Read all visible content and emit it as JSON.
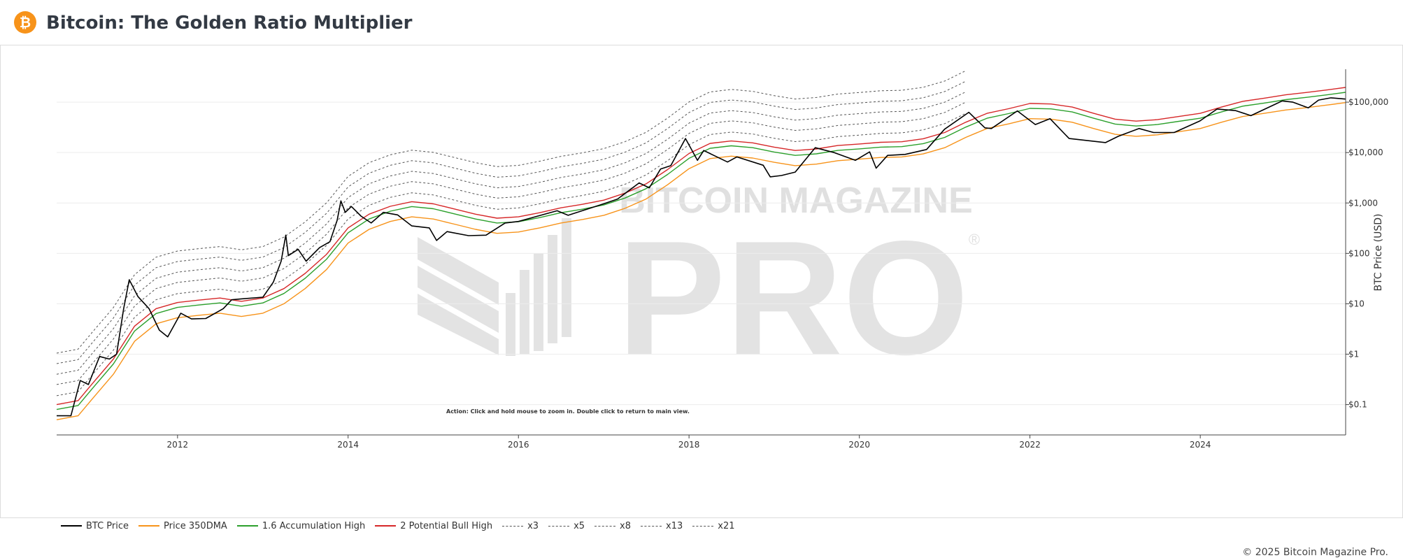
{
  "header": {
    "title": "Bitcoin: The Golden Ratio Multiplier",
    "logo_icon": "bitcoin-logo-icon",
    "logo_glyph": "₿"
  },
  "watermark": {
    "line1": "BITCOIN MAGAZINE",
    "line2": "PRO",
    "registered": "®"
  },
  "annotation": "Action: Click and hold mouse to zoom in.  Double click to return to main view.",
  "footer": {
    "copyright": "© 2025 Bitcoin Magazine Pro."
  },
  "legend": [
    {
      "label": "BTC Price",
      "color": "#000000",
      "style": "solid"
    },
    {
      "label": "Price 350DMA",
      "color": "#f7931a",
      "style": "solid"
    },
    {
      "label": "1.6 Accumulation High",
      "color": "#2ca02c",
      "style": "solid"
    },
    {
      "label": "2 Potential Bull High",
      "color": "#d62728",
      "style": "solid"
    },
    {
      "label": "x3",
      "color": "#555555",
      "style": "dashed"
    },
    {
      "label": "x5",
      "color": "#555555",
      "style": "dashed"
    },
    {
      "label": "x8",
      "color": "#555555",
      "style": "dashed"
    },
    {
      "label": "x13",
      "color": "#555555",
      "style": "dashed"
    },
    {
      "label": "x21",
      "color": "#555555",
      "style": "dashed"
    }
  ],
  "chart_data": {
    "type": "line",
    "title": "Bitcoin: The Golden Ratio Multiplier",
    "xlabel": "",
    "ylabel": "BTC Price (USD)",
    "y_scale": "log",
    "xlim": [
      "2010-08-01",
      "2025-09-15"
    ],
    "ylim": [
      0.025,
      450000
    ],
    "x_ticks": [
      "2012",
      "2014",
      "2016",
      "2018",
      "2020",
      "2022",
      "2024"
    ],
    "x_tick_dates": [
      "2012-01-01",
      "2014-01-01",
      "2016-01-01",
      "2018-01-01",
      "2020-01-01",
      "2022-01-01",
      "2024-01-01"
    ],
    "y_ticks": [
      0.1,
      1,
      10,
      100,
      1000,
      10000,
      100000
    ],
    "y_tick_labels": [
      "$0.1",
      "$1",
      "$10",
      "$100",
      "$1,000",
      "$10,000",
      "$100,000"
    ],
    "grid": "horizontal",
    "legend_position": "bottom",
    "multiplier_bands_end": "2021-06-01",
    "series": [
      {
        "name": "BTC Price",
        "color": "#000000",
        "points": [
          [
            "2010-08-01",
            0.06
          ],
          [
            "2010-10-01",
            0.06
          ],
          [
            "2010-11-10",
            0.3
          ],
          [
            "2010-12-15",
            0.25
          ],
          [
            "2011-02-01",
            0.9
          ],
          [
            "2011-03-15",
            0.8
          ],
          [
            "2011-04-15",
            1.0
          ],
          [
            "2011-05-15",
            8.0
          ],
          [
            "2011-06-08",
            30.0
          ],
          [
            "2011-07-15",
            14.0
          ],
          [
            "2011-09-01",
            8.0
          ],
          [
            "2011-10-15",
            3.0
          ],
          [
            "2011-11-20",
            2.2
          ],
          [
            "2012-01-15",
            6.5
          ],
          [
            "2012-03-01",
            5.0
          ],
          [
            "2012-05-01",
            5.1
          ],
          [
            "2012-07-15",
            8.0
          ],
          [
            "2012-08-20",
            12.0
          ],
          [
            "2012-10-01",
            12.5
          ],
          [
            "2013-01-01",
            13.5
          ],
          [
            "2013-02-15",
            27.0
          ],
          [
            "2013-03-20",
            70.0
          ],
          [
            "2013-04-09",
            230.0
          ],
          [
            "2013-04-20",
            90.0
          ],
          [
            "2013-06-01",
            120.0
          ],
          [
            "2013-07-05",
            70.0
          ],
          [
            "2013-09-01",
            130.0
          ],
          [
            "2013-10-15",
            170.0
          ],
          [
            "2013-11-15",
            450.0
          ],
          [
            "2013-12-01",
            1100.0
          ],
          [
            "2013-12-20",
            650.0
          ],
          [
            "2014-01-15",
            850.0
          ],
          [
            "2014-02-25",
            550.0
          ],
          [
            "2014-04-10",
            400.0
          ],
          [
            "2014-06-01",
            650.0
          ],
          [
            "2014-08-01",
            580.0
          ],
          [
            "2014-10-01",
            350.0
          ],
          [
            "2014-12-15",
            320.0
          ],
          [
            "2015-01-15",
            180.0
          ],
          [
            "2015-03-01",
            270.0
          ],
          [
            "2015-06-01",
            225.0
          ],
          [
            "2015-08-15",
            230.0
          ],
          [
            "2015-11-05",
            400.0
          ],
          [
            "2016-01-01",
            430.0
          ],
          [
            "2016-06-15",
            700.0
          ],
          [
            "2016-08-01",
            570.0
          ],
          [
            "2016-12-31",
            960.0
          ],
          [
            "2017-03-01",
            1200.0
          ],
          [
            "2017-06-01",
            2500.0
          ],
          [
            "2017-07-15",
            2000.0
          ],
          [
            "2017-09-01",
            4700.0
          ],
          [
            "2017-10-15",
            5500.0
          ],
          [
            "2017-12-17",
            19000.0
          ],
          [
            "2018-02-06",
            7000.0
          ],
          [
            "2018-03-05",
            11000.0
          ],
          [
            "2018-06-15",
            6500.0
          ],
          [
            "2018-07-25",
            8200.0
          ],
          [
            "2018-11-15",
            5600.0
          ],
          [
            "2018-12-15",
            3300.0
          ],
          [
            "2019-02-01",
            3500.0
          ],
          [
            "2019-04-01",
            4100.0
          ],
          [
            "2019-06-26",
            12500.0
          ],
          [
            "2019-09-15",
            10000.0
          ],
          [
            "2019-12-15",
            7000.0
          ],
          [
            "2020-02-14",
            10300.0
          ],
          [
            "2020-03-13",
            4900.0
          ],
          [
            "2020-05-01",
            8800.0
          ],
          [
            "2020-07-15",
            9200.0
          ],
          [
            "2020-10-15",
            11500.0
          ],
          [
            "2020-12-31",
            29000.0
          ],
          [
            "2021-04-14",
            63000.0
          ],
          [
            "2021-06-22",
            31000.0
          ],
          [
            "2021-07-20",
            30000.0
          ],
          [
            "2021-11-08",
            67000.0
          ],
          [
            "2022-01-24",
            36000.0
          ],
          [
            "2022-03-28",
            47000.0
          ],
          [
            "2022-06-18",
            19000.0
          ],
          [
            "2022-11-21",
            15800.0
          ],
          [
            "2023-01-15",
            21000.0
          ],
          [
            "2023-04-14",
            30000.0
          ],
          [
            "2023-06-15",
            25000.0
          ],
          [
            "2023-09-11",
            25000.0
          ],
          [
            "2023-12-31",
            42500.0
          ],
          [
            "2024-03-13",
            73000.0
          ],
          [
            "2024-06-01",
            68000.0
          ],
          [
            "2024-08-05",
            54000.0
          ],
          [
            "2024-11-15",
            90000.0
          ],
          [
            "2024-12-17",
            106000.0
          ],
          [
            "2025-02-01",
            100000.0
          ],
          [
            "2025-04-08",
            77000.0
          ],
          [
            "2025-05-22",
            110000.0
          ],
          [
            "2025-07-14",
            122000.0
          ],
          [
            "2025-09-15",
            115000.0
          ]
        ]
      },
      {
        "name": "Price 350DMA",
        "color": "#f7931a",
        "points": [
          [
            "2010-08-01",
            0.05
          ],
          [
            "2010-11-01",
            0.06
          ],
          [
            "2011-01-01",
            0.13
          ],
          [
            "2011-04-01",
            0.4
          ],
          [
            "2011-07-01",
            1.8
          ],
          [
            "2011-10-01",
            4.0
          ],
          [
            "2012-01-01",
            5.3
          ],
          [
            "2012-04-01",
            5.9
          ],
          [
            "2012-07-01",
            6.5
          ],
          [
            "2012-10-01",
            5.6
          ],
          [
            "2013-01-01",
            6.5
          ],
          [
            "2013-04-01",
            10.0
          ],
          [
            "2013-07-01",
            20.0
          ],
          [
            "2013-10-01",
            48.0
          ],
          [
            "2014-01-01",
            160.0
          ],
          [
            "2014-04-01",
            300.0
          ],
          [
            "2014-07-01",
            430.0
          ],
          [
            "2014-10-01",
            530.0
          ],
          [
            "2015-01-01",
            480.0
          ],
          [
            "2015-04-01",
            380.0
          ],
          [
            "2015-07-01",
            300.0
          ],
          [
            "2015-10-01",
            250.0
          ],
          [
            "2016-01-01",
            265.0
          ],
          [
            "2016-04-01",
            320.0
          ],
          [
            "2016-07-01",
            400.0
          ],
          [
            "2016-10-01",
            470.0
          ],
          [
            "2017-01-01",
            570.0
          ],
          [
            "2017-04-01",
            780.0
          ],
          [
            "2017-07-01",
            1200.0
          ],
          [
            "2017-10-01",
            2300.0
          ],
          [
            "2018-01-01",
            4800.0
          ],
          [
            "2018-04-01",
            7600.0
          ],
          [
            "2018-07-01",
            8500.0
          ],
          [
            "2018-10-01",
            7800.0
          ],
          [
            "2019-01-01",
            6400.0
          ],
          [
            "2019-04-01",
            5500.0
          ],
          [
            "2019-07-01",
            5900.0
          ],
          [
            "2019-10-01",
            6900.0
          ],
          [
            "2020-01-01",
            7400.0
          ],
          [
            "2020-04-01",
            8000.0
          ],
          [
            "2020-07-01",
            8200.0
          ],
          [
            "2020-10-01",
            9400.0
          ],
          [
            "2021-01-01",
            12500.0
          ],
          [
            "2021-04-01",
            20000.0
          ],
          [
            "2021-07-01",
            30000.0
          ],
          [
            "2021-10-01",
            37000.0
          ],
          [
            "2022-01-01",
            47000.0
          ],
          [
            "2022-04-01",
            46000.0
          ],
          [
            "2022-07-01",
            40000.0
          ],
          [
            "2022-10-01",
            30000.0
          ],
          [
            "2023-01-01",
            23000.0
          ],
          [
            "2023-04-01",
            21000.0
          ],
          [
            "2023-07-01",
            22500.0
          ],
          [
            "2023-10-01",
            26000.0
          ],
          [
            "2024-01-01",
            30000.0
          ],
          [
            "2024-04-01",
            40000.0
          ],
          [
            "2024-07-01",
            52000.0
          ],
          [
            "2024-10-01",
            60000.0
          ],
          [
            "2025-01-01",
            70000.0
          ],
          [
            "2025-04-01",
            78000.0
          ],
          [
            "2025-07-01",
            88000.0
          ],
          [
            "2025-09-15",
            98000.0
          ]
        ]
      },
      {
        "name": "1.6 Accumulation High",
        "color": "#2ca02c",
        "multiplier": 1.6,
        "base": "Price 350DMA"
      },
      {
        "name": "2 Potential Bull High",
        "color": "#d62728",
        "multiplier": 2,
        "base": "Price 350DMA"
      },
      {
        "name": "x3",
        "color": "#555555",
        "multiplier": 3,
        "base": "Price 350DMA",
        "dashed": true
      },
      {
        "name": "x5",
        "color": "#555555",
        "multiplier": 5,
        "base": "Price 350DMA",
        "dashed": true
      },
      {
        "name": "x8",
        "color": "#555555",
        "multiplier": 8,
        "base": "Price 350DMA",
        "dashed": true
      },
      {
        "name": "x13",
        "color": "#555555",
        "multiplier": 13,
        "base": "Price 350DMA",
        "dashed": true
      },
      {
        "name": "x21",
        "color": "#555555",
        "multiplier": 21,
        "base": "Price 350DMA",
        "dashed": true
      }
    ]
  }
}
